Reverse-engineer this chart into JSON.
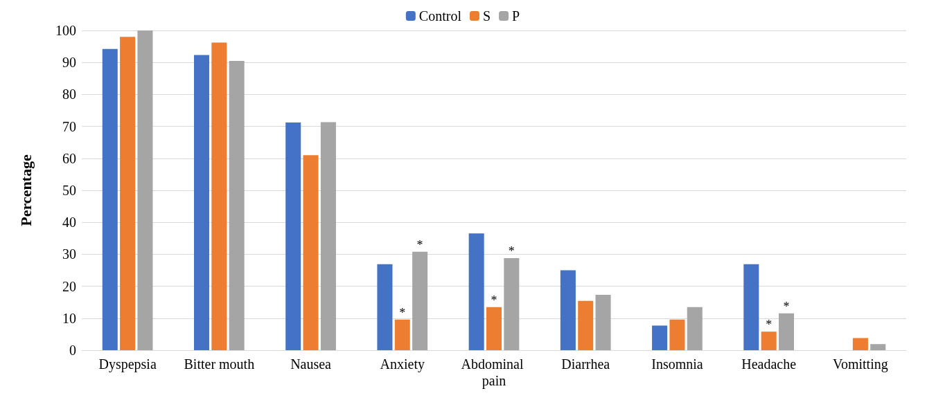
{
  "chart_data": {
    "type": "bar",
    "ylabel": "Percentage",
    "categories": [
      "Dyspepsia",
      "Bitter mouth",
      "Nausea",
      "Anxiety",
      "Abdominal pain",
      "Diarrhea",
      "Insomnia",
      "Headache",
      "Vomitting"
    ],
    "series": [
      {
        "name": "Control",
        "color": "#4472c4",
        "values": [
          94.2,
          92.3,
          71.2,
          26.9,
          36.5,
          25,
          7.7,
          26.9,
          0
        ]
      },
      {
        "name": "S",
        "color": "#ed7d31",
        "values": [
          98,
          96.2,
          61,
          9.6,
          13.5,
          15.4,
          9.6,
          5.8,
          3.8
        ],
        "value_labels": [
          null,
          null,
          null,
          "*",
          "*",
          null,
          null,
          "*",
          null
        ]
      },
      {
        "name": "P",
        "color": "#a5a5a5",
        "values": [
          100,
          90.5,
          71.3,
          30.8,
          28.8,
          17.3,
          13.5,
          11.5,
          1.9
        ],
        "value_labels": [
          null,
          null,
          null,
          "*",
          "*",
          null,
          null,
          "*",
          null
        ]
      }
    ],
    "ylim": [
      0,
      100
    ],
    "yticks": [
      0,
      10,
      20,
      30,
      40,
      50,
      60,
      70,
      80,
      90,
      100
    ],
    "grid": "y",
    "legend": "top"
  }
}
